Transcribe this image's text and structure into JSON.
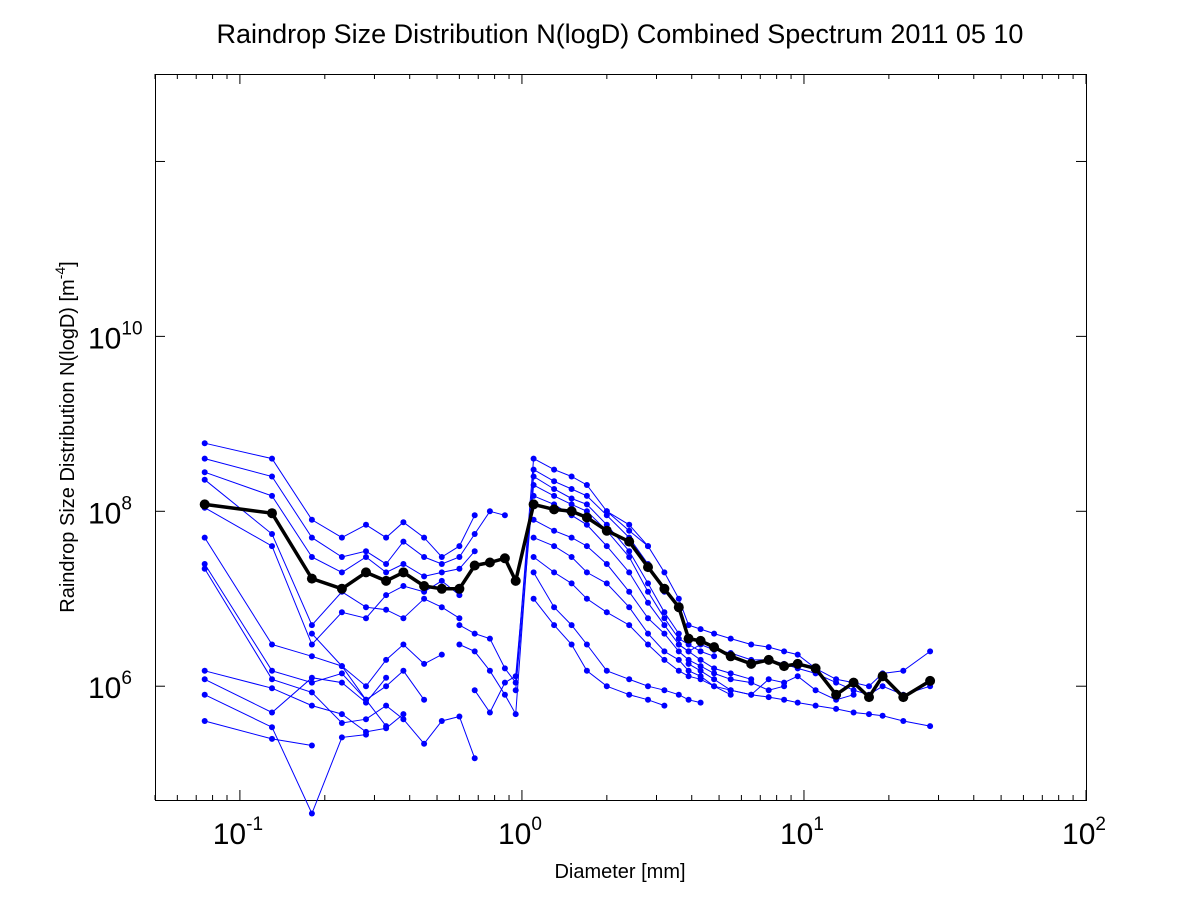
{
  "chart_data": {
    "type": "line",
    "title": "Raindrop Size Distribution N(logD) Combined Spectrum 2011 05 10",
    "xlabel": "Diameter [mm]",
    "ylabel": "Raindrop Size Distribution N(logD) [m",
    "ylabel_sup": "-4",
    "ylabel_suffix": "]",
    "xscale": "log",
    "yscale": "log",
    "xlim": [
      0.05,
      100
    ],
    "ylim": [
      50000,
      10000000000000
    ],
    "grid": false,
    "x_ticks": [
      {
        "base": "10",
        "exp": "-1"
      },
      {
        "base": "10",
        "exp": "0"
      },
      {
        "base": "10",
        "exp": "1"
      },
      {
        "base": "10",
        "exp": "2"
      }
    ],
    "y_ticks": [
      {
        "base": "10",
        "exp": "6"
      },
      {
        "base": "10",
        "exp": "8"
      },
      {
        "base": "10",
        "exp": "10"
      }
    ],
    "colors": {
      "individual": "#0000ff",
      "mean": "#000000"
    },
    "mean_series": {
      "x": [
        0.075,
        0.13,
        0.18,
        0.23,
        0.28,
        0.33,
        0.38,
        0.45,
        0.52,
        0.6,
        0.68,
        0.77,
        0.87,
        0.95,
        1.1,
        1.3,
        1.5,
        1.7,
        2.0,
        2.4,
        2.8,
        3.2,
        3.6,
        3.9,
        4.3,
        4.8,
        5.5,
        6.5,
        7.5,
        8.5,
        9.5,
        11,
        13,
        15,
        17,
        19,
        22.5,
        28
      ],
      "y": [
        120000000,
        95000000,
        17000000,
        13000000,
        20000000,
        16000000,
        20000000,
        14000000,
        13000000,
        13000000,
        24000000,
        26000000,
        29000000,
        16000000,
        120000000,
        105000000,
        100000000,
        85000000,
        60000000,
        45000000,
        23000000,
        13000000,
        8000000,
        3500000,
        3300000,
        2800000,
        2200000,
        1800000,
        2000000,
        1700000,
        1800000,
        1600000,
        800000,
        1100000,
        750000,
        1300000,
        750000,
        1150000
      ]
    },
    "individual_series": [
      {
        "x": [
          0.075,
          0.13,
          0.18,
          0.23,
          0.28,
          0.33,
          0.38,
          0.45,
          0.52,
          0.6,
          0.68
        ],
        "y": [
          600000000,
          400000000,
          80000000,
          50000000,
          70000000,
          50000000,
          75000000,
          50000000,
          30000000,
          40000000,
          90000000
        ]
      },
      {
        "x": [
          0.075,
          0.13,
          0.18,
          0.23,
          0.28,
          0.33,
          0.38,
          0.45,
          0.52,
          0.6,
          0.68,
          0.77,
          0.87
        ],
        "y": [
          400000000,
          250000000,
          50000000,
          30000000,
          35000000,
          25000000,
          45000000,
          30000000,
          25000000,
          30000000,
          55000000,
          100000000,
          90000000
        ]
      },
      {
        "x": [
          0.075,
          0.13,
          0.18,
          0.23,
          0.28,
          0.33,
          0.38,
          0.45,
          0.52,
          0.6,
          0.68
        ],
        "y": [
          280000000,
          150000000,
          30000000,
          20000000,
          30000000,
          20000000,
          25000000,
          18000000,
          20000000,
          22000000,
          35000000
        ]
      },
      {
        "x": [
          0.075,
          0.13,
          0.18,
          0.23,
          0.28,
          0.33,
          0.38,
          0.45,
          0.52,
          0.6
        ],
        "y": [
          230000000,
          55000000,
          5000000,
          12000000,
          8000000,
          7500000,
          6000000,
          10000000,
          8000000,
          6000000
        ]
      },
      {
        "x": [
          0.075,
          0.13,
          0.18,
          0.23,
          0.28,
          0.33,
          0.38,
          0.45,
          0.52,
          0.6
        ],
        "y": [
          110000000,
          40000000,
          3000000,
          7000000,
          6000000,
          11000000,
          14000000,
          12000000,
          16000000,
          11000000
        ]
      },
      {
        "x": [
          0.075,
          0.13,
          0.18,
          0.23,
          0.28,
          0.33,
          0.38,
          0.45,
          0.52
        ],
        "y": [
          50000000,
          3000000,
          2200000,
          1700000,
          1000000,
          2000000,
          3000000,
          1800000,
          2300000
        ]
      },
      {
        "x": [
          0.075,
          0.13,
          0.18,
          0.23,
          0.28,
          0.33,
          0.38,
          0.45
        ],
        "y": [
          25000000,
          1500000,
          1100000,
          1400000,
          700000,
          1000000,
          1500000,
          700000
        ]
      },
      {
        "x": [
          0.075,
          0.13,
          0.18,
          0.23,
          0.28,
          0.33,
          0.38,
          0.45,
          0.52,
          0.6,
          0.68
        ],
        "y": [
          22000000,
          1200000,
          850000,
          380000,
          420000,
          600000,
          420000,
          220000,
          400000,
          450000,
          150000
        ]
      },
      {
        "x": [
          0.075,
          0.13,
          0.18,
          0.23,
          0.28,
          0.33,
          0.38
        ],
        "y": [
          1500000,
          950000,
          600000,
          480000,
          300000,
          330000,
          480000
        ]
      },
      {
        "x": [
          0.075,
          0.13,
          0.18,
          0.23,
          0.28,
          0.33
        ],
        "y": [
          1200000,
          500000,
          1250000,
          1100000,
          650000,
          1250000
        ]
      },
      {
        "x": [
          0.075,
          0.13,
          0.18,
          0.23,
          0.28
        ],
        "y": [
          800000,
          340000,
          35000,
          260000,
          280000
        ]
      },
      {
        "x": [
          0.075,
          0.13,
          0.18
        ],
        "y": [
          400000,
          250000,
          210000
        ]
      },
      {
        "x": [
          0.18,
          0.23,
          0.28,
          0.33
        ],
        "y": [
          4000000,
          1700000,
          700000,
          350000
        ]
      },
      {
        "x": [
          0.6,
          0.68,
          0.77,
          0.87,
          0.95,
          1.1,
          1.3,
          1.5,
          1.7,
          2.0,
          2.4,
          2.8
        ],
        "y": [
          5000000,
          4000000,
          3500000,
          1600000,
          1100000,
          400000000,
          300000000,
          250000000,
          200000000,
          100000000,
          60000000,
          40000000
        ]
      },
      {
        "x": [
          0.6,
          0.68,
          0.77,
          0.87,
          0.95,
          1.1,
          1.3,
          1.5,
          1.7,
          2.0,
          2.4,
          2.8,
          3.2
        ],
        "y": [
          3000000,
          2500000,
          1500000,
          800000,
          480000,
          300000000,
          220000000,
          180000000,
          150000000,
          90000000,
          50000000,
          25000000,
          12000000
        ]
      },
      {
        "x": [
          0.68,
          0.77,
          0.87,
          0.95,
          1.1,
          1.3,
          1.5,
          1.7,
          2.0,
          2.4,
          2.8,
          3.2,
          3.6
        ],
        "y": [
          900000,
          500000,
          1100000,
          1300000,
          250000000,
          180000000,
          140000000,
          120000000,
          70000000,
          35000000,
          15000000,
          7000000,
          4000000
        ]
      },
      {
        "x": [
          0.95,
          1.1,
          1.3,
          1.5,
          1.7,
          2.0,
          2.4,
          2.8,
          3.2,
          3.6,
          3.9,
          4.3,
          4.8
        ],
        "y": [
          900000,
          200000000,
          150000000,
          120000000,
          100000000,
          60000000,
          30000000,
          12000000,
          6000000,
          3500000,
          3000000,
          2500000,
          2200000
        ]
      },
      {
        "x": [
          1.1,
          1.3,
          1.5,
          1.7,
          2.0,
          2.4,
          2.8,
          3.2,
          3.6,
          3.9,
          4.3,
          4.8,
          5.5,
          6.5
        ],
        "y": [
          150000000,
          120000000,
          90000000,
          70000000,
          40000000,
          20000000,
          9000000,
          5000000,
          3000000,
          2500000,
          2000000,
          1600000,
          1400000,
          1200000
        ]
      },
      {
        "x": [
          1.1,
          1.3,
          1.5,
          1.7,
          2.0,
          2.4,
          2.8,
          3.2,
          3.6,
          3.9,
          4.3,
          4.8,
          5.5,
          6.5,
          7.5,
          8.5
        ],
        "y": [
          80000000,
          60000000,
          50000000,
          40000000,
          25000000,
          12000000,
          6000000,
          4000000,
          2500000,
          2000000,
          1700000,
          1400000,
          1200000,
          1100000,
          900000,
          1000000
        ]
      },
      {
        "x": [
          1.1,
          1.3,
          1.5,
          1.7,
          2.0,
          2.4,
          2.8,
          3.2,
          3.6,
          3.9,
          4.3,
          4.8,
          5.5
        ],
        "y": [
          50000000,
          40000000,
          30000000,
          20000000,
          15000000,
          8000000,
          4000000,
          2500000,
          2000000,
          1500000,
          1300000,
          1000000,
          800000
        ]
      },
      {
        "x": [
          1.1,
          1.3,
          1.5,
          1.7,
          2.0,
          2.4,
          2.8,
          3.2,
          3.6,
          3.9,
          4.3,
          4.8,
          5.5,
          6.5,
          7.5,
          8.5,
          9.5,
          11,
          13,
          15,
          17,
          19,
          22.5,
          28
        ],
        "y": [
          30000000,
          20000000,
          15000000,
          10000000,
          7000000,
          5000000,
          3000000,
          2000000,
          1500000,
          1300000,
          1200000,
          1000000,
          900000,
          800000,
          750000,
          700000,
          650000,
          600000,
          550000,
          500000,
          480000,
          460000,
          400000,
          350000
        ]
      },
      {
        "x": [
          1.1,
          1.3,
          1.5,
          1.7,
          2.0,
          2.4,
          2.8,
          3.2,
          3.6,
          3.9,
          4.3
        ],
        "y": [
          20000000,
          8000000,
          5000000,
          3000000,
          1500000,
          1200000,
          1000000,
          900000,
          800000,
          700000,
          650000
        ]
      },
      {
        "x": [
          1.1,
          1.3,
          1.5,
          1.7,
          2.0,
          2.4,
          2.8,
          3.2
        ],
        "y": [
          10000000,
          5000000,
          3000000,
          1500000,
          1000000,
          800000,
          700000,
          600000
        ]
      },
      {
        "x": [
          2.0,
          2.4,
          2.8,
          3.2,
          3.6,
          3.9,
          4.3,
          4.8,
          5.5,
          6.5,
          7.5,
          8.5,
          9.5,
          11,
          13,
          15,
          17,
          19,
          22.5,
          28
        ],
        "y": [
          100000000,
          70000000,
          40000000,
          20000000,
          10000000,
          5000000,
          4500000,
          4000000,
          3500000,
          3000000,
          2800000,
          2500000,
          2300000,
          1600000,
          1200000,
          1100000,
          1000000,
          1400000,
          1500000,
          2500000
        ]
      },
      {
        "x": [
          3.6,
          3.9,
          4.3,
          4.8,
          5.5,
          6.5,
          7.5,
          8.5,
          9.5,
          11,
          13,
          15,
          17,
          19,
          22.5,
          28
        ],
        "y": [
          3000000,
          2500000,
          3000000,
          2600000,
          2400000,
          2000000,
          2000000,
          1800000,
          1600000,
          1400000,
          1100000,
          900000,
          800000,
          1000000,
          800000,
          1000000
        ]
      },
      {
        "x": [
          3.9,
          4.3,
          4.8,
          5.5,
          6.5,
          7.5,
          8.5,
          9.5,
          11,
          13,
          15
        ],
        "y": [
          1800000,
          1500000,
          1200000,
          900000,
          800000,
          1200000,
          1100000,
          1300000,
          900000,
          700000,
          800000
        ]
      }
    ]
  }
}
